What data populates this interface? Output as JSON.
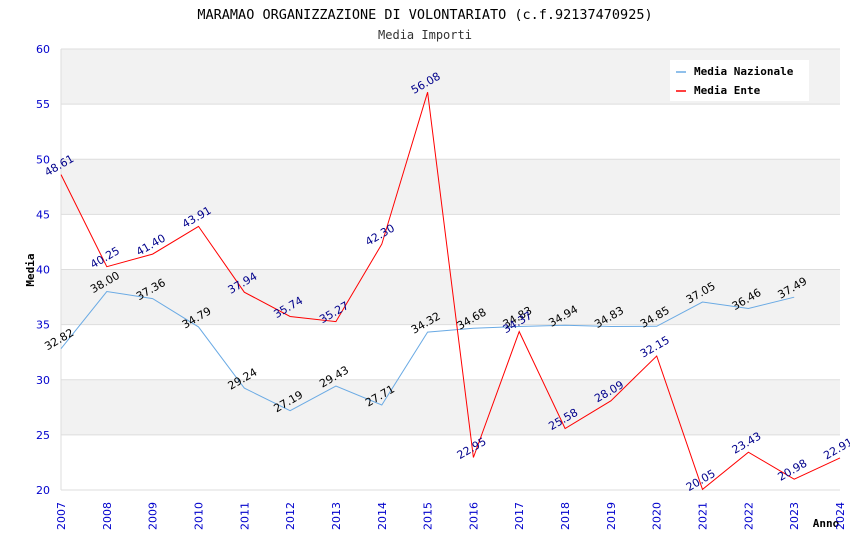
{
  "chart_data": {
    "type": "line",
    "title": "MARAMAO ORGANIZZAZIONE DI VOLONTARIATO (c.f.92137470925)",
    "subtitle": "Media Importi",
    "xlabel": "Anno",
    "ylabel": "Media",
    "ylim": [
      20,
      60
    ],
    "yticks": [
      "20",
      "25",
      "30",
      "35",
      "40",
      "45",
      "50",
      "55",
      "60"
    ],
    "x": [
      "2007",
      "2008",
      "2009",
      "2010",
      "2011",
      "2012",
      "2013",
      "2014",
      "2015",
      "2016",
      "2017",
      "2018",
      "2019",
      "2020",
      "2021",
      "2022",
      "2023",
      "2024"
    ],
    "grid": true,
    "legend_position": "top-right",
    "series": [
      {
        "name": "Media Nazionale",
        "color": "#6aaae4",
        "label_color": "#000000",
        "values": [
          32.82,
          38.0,
          37.36,
          34.79,
          29.24,
          27.19,
          29.43,
          27.71,
          34.32,
          34.68,
          34.83,
          34.94,
          34.83,
          34.85,
          37.05,
          36.46,
          37.49,
          null
        ],
        "labels": [
          "32.82",
          "38.00",
          "37.36",
          "34.79",
          "29.24",
          "27.19",
          "29.43",
          "27.71",
          "34.32",
          "34.68",
          "34.83",
          "34.94",
          "34.83",
          "34.85",
          "37.05",
          "36.46",
          "37.49",
          ""
        ]
      },
      {
        "name": "Media Ente",
        "color": "#ff0000",
        "label_color": "#00008b",
        "values": [
          48.61,
          40.25,
          41.4,
          43.91,
          37.94,
          35.74,
          35.27,
          42.3,
          56.08,
          22.95,
          34.37,
          25.58,
          28.09,
          32.15,
          20.05,
          23.43,
          20.98,
          22.91
        ],
        "labels": [
          "48.61",
          "40.25",
          "41.40",
          "43.91",
          "37.94",
          "35.74",
          "35.27",
          "42.30",
          "56.08",
          "22.95",
          "34.37",
          "25.58",
          "28.09",
          "32.15",
          "20.05",
          "23.43",
          "20.98",
          "22.91"
        ]
      }
    ]
  }
}
